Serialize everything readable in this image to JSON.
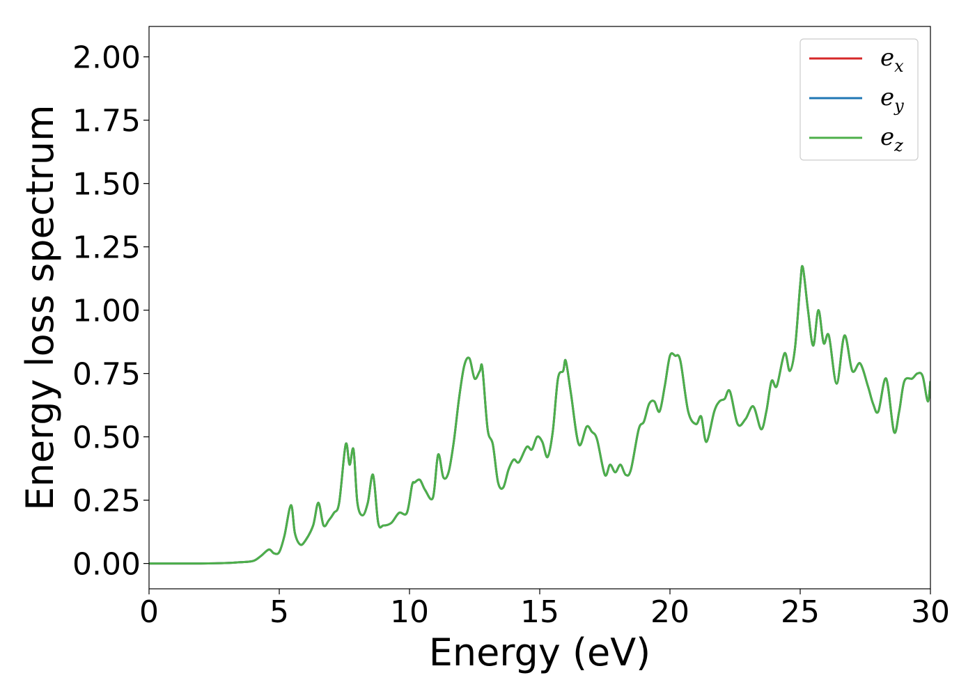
{
  "chart_data": {
    "type": "line",
    "title": "",
    "xlabel": "Energy (eV)",
    "ylabel": "Energy loss spectrum",
    "xlim": [
      0,
      30
    ],
    "ylim": [
      -0.1,
      2.12
    ],
    "x_ticks": [
      0,
      5,
      10,
      15,
      20,
      25,
      30
    ],
    "x_tick_labels": [
      "0",
      "5",
      "10",
      "15",
      "20",
      "25",
      "30"
    ],
    "y_ticks": [
      0,
      0.25,
      0.5,
      0.75,
      1.0,
      1.25,
      1.5,
      1.75,
      2.0
    ],
    "y_tick_labels": [
      "0.00",
      "0.25",
      "0.50",
      "0.75",
      "1.00",
      "1.25",
      "1.50",
      "1.75",
      "2.00"
    ],
    "grid": false,
    "legend_position": "top-right",
    "x": [
      0,
      1,
      2,
      3,
      3.5,
      4,
      4.3,
      4.6,
      4.8,
      5.0,
      5.2,
      5.45,
      5.6,
      5.8,
      6.0,
      6.3,
      6.5,
      6.7,
      6.9,
      7.1,
      7.3,
      7.55,
      7.7,
      7.85,
      8.0,
      8.2,
      8.4,
      8.6,
      8.8,
      9.0,
      9.3,
      9.6,
      9.9,
      10.1,
      10.2,
      10.4,
      10.6,
      10.9,
      11.1,
      11.3,
      11.5,
      11.7,
      11.9,
      12.1,
      12.3,
      12.5,
      12.7,
      12.8,
      13.0,
      13.2,
      13.4,
      13.6,
      13.8,
      14.0,
      14.2,
      14.5,
      14.7,
      14.9,
      15.1,
      15.3,
      15.5,
      15.7,
      15.9,
      16.0,
      16.2,
      16.5,
      16.8,
      17.0,
      17.2,
      17.5,
      17.7,
      17.9,
      18.1,
      18.3,
      18.5,
      18.8,
      19.0,
      19.2,
      19.4,
      19.6,
      19.8,
      20.0,
      20.2,
      20.4,
      20.7,
      21.0,
      21.2,
      21.4,
      21.7,
      21.9,
      22.1,
      22.3,
      22.6,
      22.9,
      23.2,
      23.5,
      23.7,
      23.9,
      24.1,
      24.4,
      24.6,
      24.8,
      25.0,
      25.1,
      25.3,
      25.5,
      25.7,
      25.9,
      26.1,
      26.4,
      26.7,
      27.0,
      27.3,
      27.6,
      27.8,
      28.0,
      28.3,
      28.6,
      28.8,
      29.0,
      29.3,
      29.5,
      29.7,
      29.9,
      30.0
    ],
    "series": [
      {
        "name": "ex",
        "color": "#d62728",
        "values": [
          0,
          0,
          0,
          0.002,
          0.005,
          0.01,
          0.03,
          0.055,
          0.04,
          0.045,
          0.11,
          0.23,
          0.12,
          0.075,
          0.09,
          0.15,
          0.24,
          0.15,
          0.17,
          0.2,
          0.24,
          0.47,
          0.39,
          0.45,
          0.24,
          0.19,
          0.24,
          0.35,
          0.16,
          0.15,
          0.16,
          0.2,
          0.2,
          0.31,
          0.32,
          0.33,
          0.29,
          0.26,
          0.43,
          0.34,
          0.36,
          0.48,
          0.65,
          0.78,
          0.81,
          0.73,
          0.76,
          0.77,
          0.53,
          0.47,
          0.32,
          0.3,
          0.37,
          0.41,
          0.4,
          0.46,
          0.45,
          0.5,
          0.48,
          0.42,
          0.52,
          0.73,
          0.76,
          0.8,
          0.67,
          0.47,
          0.54,
          0.52,
          0.49,
          0.35,
          0.39,
          0.36,
          0.39,
          0.35,
          0.37,
          0.53,
          0.56,
          0.63,
          0.64,
          0.6,
          0.7,
          0.82,
          0.82,
          0.8,
          0.6,
          0.55,
          0.58,
          0.48,
          0.6,
          0.64,
          0.65,
          0.68,
          0.55,
          0.57,
          0.62,
          0.53,
          0.6,
          0.72,
          0.7,
          0.83,
          0.76,
          0.85,
          1.1,
          1.17,
          1.0,
          0.86,
          1.0,
          0.87,
          0.9,
          0.71,
          0.9,
          0.76,
          0.79,
          0.7,
          0.63,
          0.6,
          0.73,
          0.52,
          0.6,
          0.72,
          0.73,
          0.75,
          0.74,
          0.64,
          0.72
        ]
      },
      {
        "name": "ey",
        "color": "#1f77b4",
        "values": [
          0,
          0,
          0,
          0.002,
          0.005,
          0.01,
          0.03,
          0.055,
          0.04,
          0.045,
          0.11,
          0.23,
          0.12,
          0.075,
          0.09,
          0.15,
          0.24,
          0.15,
          0.17,
          0.2,
          0.24,
          0.47,
          0.39,
          0.45,
          0.24,
          0.19,
          0.24,
          0.35,
          0.16,
          0.15,
          0.16,
          0.2,
          0.2,
          0.31,
          0.32,
          0.33,
          0.29,
          0.26,
          0.43,
          0.34,
          0.36,
          0.48,
          0.65,
          0.78,
          0.81,
          0.73,
          0.76,
          0.77,
          0.53,
          0.47,
          0.32,
          0.3,
          0.37,
          0.41,
          0.4,
          0.46,
          0.45,
          0.5,
          0.48,
          0.42,
          0.52,
          0.73,
          0.76,
          0.8,
          0.67,
          0.47,
          0.54,
          0.52,
          0.49,
          0.35,
          0.39,
          0.36,
          0.39,
          0.35,
          0.37,
          0.53,
          0.56,
          0.63,
          0.64,
          0.6,
          0.7,
          0.82,
          0.82,
          0.8,
          0.6,
          0.55,
          0.58,
          0.48,
          0.6,
          0.64,
          0.65,
          0.68,
          0.55,
          0.57,
          0.62,
          0.53,
          0.6,
          0.72,
          0.7,
          0.83,
          0.76,
          0.85,
          1.1,
          1.17,
          1.0,
          0.86,
          1.0,
          0.87,
          0.9,
          0.71,
          0.9,
          0.76,
          0.79,
          0.7,
          0.63,
          0.6,
          0.73,
          0.52,
          0.6,
          0.72,
          0.73,
          0.75,
          0.74,
          0.64,
          0.72
        ]
      },
      {
        "name": "ez",
        "color": "#4daf4a",
        "values": [
          0,
          0,
          0,
          0.002,
          0.005,
          0.01,
          0.03,
          0.055,
          0.04,
          0.045,
          0.11,
          0.23,
          0.12,
          0.075,
          0.09,
          0.15,
          0.24,
          0.15,
          0.17,
          0.2,
          0.24,
          0.47,
          0.39,
          0.45,
          0.24,
          0.19,
          0.24,
          0.35,
          0.16,
          0.15,
          0.16,
          0.2,
          0.2,
          0.31,
          0.32,
          0.33,
          0.29,
          0.26,
          0.43,
          0.34,
          0.36,
          0.48,
          0.65,
          0.78,
          0.81,
          0.73,
          0.76,
          0.77,
          0.53,
          0.47,
          0.32,
          0.3,
          0.37,
          0.41,
          0.4,
          0.46,
          0.45,
          0.5,
          0.48,
          0.42,
          0.52,
          0.73,
          0.76,
          0.8,
          0.67,
          0.47,
          0.54,
          0.52,
          0.49,
          0.35,
          0.39,
          0.36,
          0.39,
          0.35,
          0.37,
          0.53,
          0.56,
          0.63,
          0.64,
          0.6,
          0.7,
          0.82,
          0.82,
          0.8,
          0.6,
          0.55,
          0.58,
          0.48,
          0.6,
          0.64,
          0.65,
          0.68,
          0.55,
          0.57,
          0.62,
          0.53,
          0.6,
          0.72,
          0.7,
          0.83,
          0.76,
          0.85,
          1.1,
          1.17,
          1.0,
          0.86,
          1.0,
          0.87,
          0.9,
          0.71,
          0.9,
          0.76,
          0.79,
          0.7,
          0.63,
          0.6,
          0.73,
          0.52,
          0.6,
          0.72,
          0.73,
          0.75,
          0.74,
          0.64,
          0.72
        ]
      }
    ],
    "legend": [
      {
        "base": "e",
        "sub": "x",
        "color": "#d62728"
      },
      {
        "base": "e",
        "sub": "y",
        "color": "#1f77b4"
      },
      {
        "base": "e",
        "sub": "z",
        "color": "#4daf4a"
      }
    ]
  }
}
